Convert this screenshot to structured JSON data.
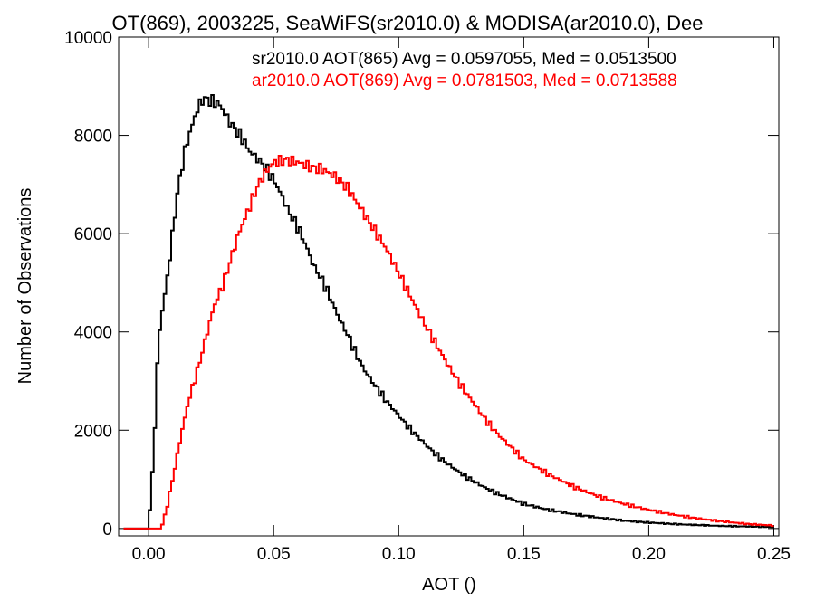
{
  "chart_data": {
    "type": "line",
    "title": "OT(869), 2003225, SeaWiFS(sr2010.0) & MODISA(ar2010.0), Dee",
    "xlabel": "AOT ()",
    "ylabel": "Number of Observations",
    "xlim": [
      -0.012,
      0.252
    ],
    "ylim": [
      -150,
      10000
    ],
    "x_ticks": [
      0.0,
      0.05,
      0.1,
      0.15,
      0.2,
      0.25
    ],
    "x_tick_labels": [
      "0.00",
      "0.05",
      "0.10",
      "0.15",
      "0.20",
      "0.25"
    ],
    "y_ticks": [
      0,
      2000,
      4000,
      6000,
      8000,
      10000
    ],
    "y_tick_labels": [
      "0",
      "2000",
      "4000",
      "6000",
      "8000",
      "10000"
    ],
    "grid": false,
    "legend_placement": "top-right",
    "annotations": [
      {
        "text": "sr2010.0 AOT(865) Avg = 0.0597055, Med = 0.0513500",
        "color": "#000000"
      },
      {
        "text": "ar2010.0 AOT(869) Avg = 0.0781503, Med = 0.0713588",
        "color": "#ff0000"
      }
    ],
    "series": [
      {
        "color": "#000000",
        "x": [
          -0.01,
          0.0,
          0.002,
          0.004,
          0.006,
          0.008,
          0.01,
          0.012,
          0.015,
          0.018,
          0.02,
          0.022,
          0.025,
          0.028,
          0.03,
          0.032,
          0.035,
          0.038,
          0.04,
          0.043,
          0.046,
          0.05,
          0.053,
          0.056,
          0.06,
          0.063,
          0.066,
          0.07,
          0.073,
          0.076,
          0.08,
          0.083,
          0.086,
          0.09,
          0.095,
          0.1,
          0.105,
          0.11,
          0.115,
          0.12,
          0.125,
          0.13,
          0.135,
          0.14,
          0.145,
          0.15,
          0.16,
          0.17,
          0.18,
          0.19,
          0.2,
          0.21,
          0.22,
          0.23,
          0.24,
          0.25
        ],
        "y": [
          0,
          0,
          1500,
          3900,
          4600,
          5300,
          6200,
          7000,
          7800,
          8300,
          8600,
          8750,
          8700,
          8650,
          8500,
          8300,
          8100,
          7900,
          7700,
          7550,
          7400,
          7100,
          6800,
          6450,
          6100,
          5750,
          5350,
          5000,
          4650,
          4300,
          3900,
          3550,
          3250,
          2950,
          2600,
          2300,
          2000,
          1750,
          1500,
          1300,
          1120,
          960,
          820,
          700,
          600,
          500,
          380,
          290,
          220,
          160,
          120,
          90,
          70,
          50,
          40,
          30
        ]
      },
      {
        "color": "#ff0000",
        "x": [
          -0.01,
          0.005,
          0.007,
          0.01,
          0.013,
          0.016,
          0.02,
          0.023,
          0.026,
          0.03,
          0.033,
          0.036,
          0.04,
          0.043,
          0.046,
          0.05,
          0.055,
          0.06,
          0.065,
          0.07,
          0.075,
          0.08,
          0.085,
          0.09,
          0.095,
          0.1,
          0.105,
          0.11,
          0.115,
          0.12,
          0.125,
          0.13,
          0.135,
          0.14,
          0.145,
          0.15,
          0.16,
          0.17,
          0.18,
          0.19,
          0.2,
          0.21,
          0.22,
          0.23,
          0.24,
          0.25
        ],
        "y": [
          0,
          0,
          350,
          1100,
          1900,
          2600,
          3300,
          3900,
          4500,
          5000,
          5500,
          6000,
          6500,
          6900,
          7200,
          7450,
          7500,
          7450,
          7350,
          7300,
          7150,
          6900,
          6500,
          6100,
          5700,
          5200,
          4700,
          4200,
          3750,
          3300,
          2900,
          2550,
          2200,
          1900,
          1650,
          1400,
          1100,
          850,
          650,
          500,
          380,
          280,
          200,
          140,
          90,
          60
        ]
      }
    ]
  }
}
